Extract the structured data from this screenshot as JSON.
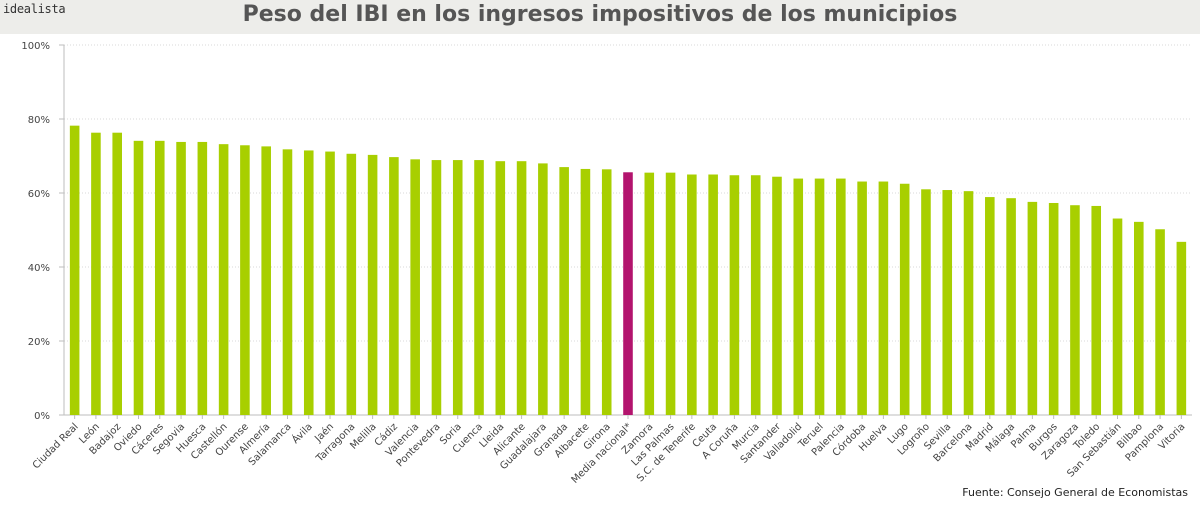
{
  "brand": "idealista",
  "source": "Fuente: Consejo General de Economistas",
  "colors": {
    "default_bar": "#a8cf00",
    "highlight_bar": "#b3146e",
    "grid": "#d9d9d9",
    "axis": "#bdbdbd"
  },
  "chart_data": {
    "type": "bar",
    "title": "Peso del IBI en los ingresos impositivos de los municipios",
    "xlabel": "",
    "ylabel": "",
    "ylim": [
      0,
      100
    ],
    "yticks": [
      "0%",
      "20%",
      "40%",
      "60%",
      "80%",
      "100%"
    ],
    "highlight": "Media nacional*",
    "categories": [
      "Ciudad Real",
      "León",
      "Badajoz",
      "Oviedo",
      "Cáceres",
      "Segovia",
      "Huesca",
      "Castellón",
      "Ourense",
      "Almería",
      "Salamanca",
      "Ávila",
      "Jaén",
      "Tarragona",
      "Melilla",
      "Cádiz",
      "Valencia",
      "Pontevedra",
      "Soria",
      "Cuenca",
      "Lleida",
      "Alicante",
      "Guadalajara",
      "Granada",
      "Albacete",
      "Girona",
      "Media nacional*",
      "Zamora",
      "Las Palmas",
      "S.C. de Tenerife",
      "Ceuta",
      "A Coruña",
      "Murcia",
      "Santander",
      "Valladolid",
      "Teruel",
      "Palencia",
      "Córdoba",
      "Huelva",
      "Lugo",
      "Logroño",
      "Sevilla",
      "Barcelona",
      "Madrid",
      "Málaga",
      "Palma",
      "Burgos",
      "Zaragoza",
      "Toledo",
      "San Sebastián",
      "Bilbao",
      "Pamplona",
      "Vitoria"
    ],
    "values": [
      78.2,
      76.3,
      76.3,
      74.1,
      74.1,
      73.8,
      73.8,
      73.2,
      72.9,
      72.6,
      71.8,
      71.5,
      71.2,
      70.6,
      70.3,
      69.7,
      69.1,
      68.9,
      68.9,
      68.9,
      68.6,
      68.6,
      68.0,
      67.0,
      66.5,
      66.4,
      65.6,
      65.5,
      65.5,
      65.0,
      65.0,
      64.8,
      64.8,
      64.4,
      63.9,
      63.9,
      63.9,
      63.1,
      63.1,
      62.5,
      61.0,
      60.8,
      60.5,
      58.9,
      58.6,
      57.6,
      57.3,
      56.7,
      56.5,
      53.1,
      52.2,
      50.2,
      46.8
    ]
  }
}
